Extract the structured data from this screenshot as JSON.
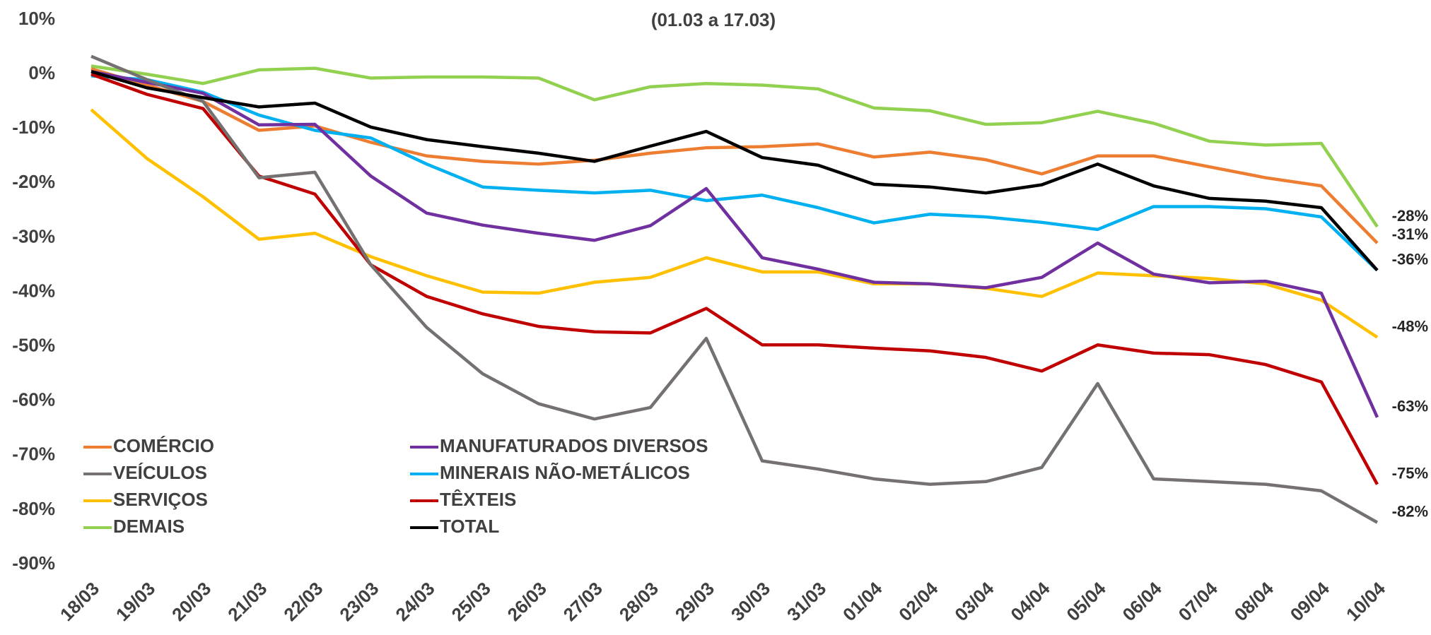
{
  "chart_data": {
    "type": "line",
    "subtitle": "(01.03 a 17.03)",
    "categories": [
      "18/03",
      "19/03",
      "20/03",
      "21/03",
      "22/03",
      "23/03",
      "24/03",
      "25/03",
      "26/03",
      "27/03",
      "28/03",
      "29/03",
      "30/03",
      "31/03",
      "01/04",
      "02/04",
      "03/04",
      "04/04",
      "05/04",
      "06/04",
      "07/04",
      "08/04",
      "09/04",
      "10/04"
    ],
    "ylim": [
      -90,
      10
    ],
    "yticks": [
      {
        "value": -90,
        "label": "-90%"
      },
      {
        "value": -80,
        "label": "-80%"
      },
      {
        "value": -70,
        "label": "-70%"
      },
      {
        "value": -60,
        "label": "-60%"
      },
      {
        "value": -50,
        "label": "-50%"
      },
      {
        "value": -40,
        "label": "-40%"
      },
      {
        "value": -30,
        "label": "-30%"
      },
      {
        "value": -20,
        "label": "-20%"
      },
      {
        "value": -10,
        "label": "-10%"
      },
      {
        "value": 0,
        "label": "0%"
      },
      {
        "value": 10,
        "label": "10%"
      }
    ],
    "grid": false,
    "legend": "lower-left",
    "series": [
      {
        "name": "COMÉRCIO",
        "color": "#ED7D31",
        "values": [
          1,
          -2,
          -5,
          -10.3,
          -9.5,
          -12.5,
          -15,
          -16,
          -16.5,
          -15.8,
          -14.5,
          -13.5,
          -13.3,
          -12.8,
          -15.2,
          -14.3,
          -15.7,
          -18.3,
          -15,
          -15,
          -17,
          -19,
          -20.5,
          -31
        ],
        "value_labels": [
          null,
          null,
          null,
          null,
          null,
          null,
          null,
          null,
          null,
          null,
          null,
          null,
          null,
          null,
          null,
          null,
          null,
          null,
          null,
          null,
          null,
          null,
          null,
          "-31%"
        ]
      },
      {
        "name": "VEÍCULOS",
        "color": "#767171",
        "values": [
          3.3,
          -1,
          -5,
          -19,
          -18,
          -35,
          -46.5,
          -55,
          -60.5,
          -63.3,
          -61.2,
          -48.5,
          -71,
          -72.5,
          -74.3,
          -75.3,
          -74.8,
          -72.2,
          -56.8,
          -74.3,
          -74.8,
          -75.3,
          -76.5,
          -82.3
        ],
        "value_labels": [
          null,
          null,
          null,
          null,
          null,
          null,
          null,
          null,
          null,
          null,
          null,
          null,
          null,
          null,
          null,
          null,
          null,
          null,
          null,
          null,
          null,
          null,
          null,
          "-82%"
        ]
      },
      {
        "name": "SERVIÇOS",
        "color": "#FFC000",
        "values": [
          -6.5,
          -15.5,
          -22.5,
          -30.3,
          -29.2,
          -33.5,
          -37,
          -40,
          -40.2,
          -38.2,
          -37.3,
          -33.7,
          -36.3,
          -36.3,
          -38.5,
          -38.5,
          -39.3,
          -40.8,
          -36.5,
          -37,
          -37.5,
          -38.5,
          -41.5,
          -48.3
        ],
        "value_labels": [
          null,
          null,
          null,
          null,
          null,
          null,
          null,
          null,
          null,
          null,
          null,
          null,
          null,
          null,
          null,
          null,
          null,
          null,
          null,
          null,
          null,
          null,
          null,
          "-48%"
        ]
      },
      {
        "name": "DEMAIS",
        "color": "#92D050",
        "values": [
          1.5,
          0,
          -1.7,
          0.8,
          1.1,
          -0.7,
          -0.5,
          -0.5,
          -0.7,
          -4.7,
          -2.3,
          -1.7,
          -2,
          -2.7,
          -6.2,
          -6.7,
          -9.2,
          -8.9,
          -6.8,
          -9,
          -12.3,
          -13,
          -12.7,
          -28
        ],
        "value_labels": [
          null,
          null,
          null,
          null,
          null,
          null,
          null,
          null,
          null,
          null,
          null,
          null,
          null,
          null,
          null,
          null,
          null,
          null,
          null,
          null,
          null,
          null,
          null,
          "-28%"
        ]
      },
      {
        "name": "MANUFATURADOS DIVERSOS",
        "color": "#7030A0",
        "values": [
          0.5,
          -1.5,
          -3.5,
          -9.3,
          -9.2,
          -18.7,
          -25.5,
          -27.7,
          -29.2,
          -30.5,
          -27.8,
          -21,
          -33.7,
          -35.8,
          -38.2,
          -38.5,
          -39.2,
          -37.3,
          -31,
          -36.7,
          -38.3,
          -38,
          -40.2,
          -63
        ],
        "value_labels": [
          null,
          null,
          null,
          null,
          null,
          null,
          null,
          null,
          null,
          null,
          null,
          null,
          null,
          null,
          null,
          null,
          null,
          null,
          null,
          null,
          null,
          null,
          null,
          "-63%"
        ]
      },
      {
        "name": "MINERAIS NÃO-METÁLICOS",
        "color": "#00B0F0",
        "values": [
          -0.3,
          -1,
          -3.3,
          -7.5,
          -10.3,
          -11.7,
          -16.5,
          -20.7,
          -21.3,
          -21.8,
          -21.3,
          -23.2,
          -22.2,
          -24.5,
          -27.3,
          -25.7,
          -26.2,
          -27.2,
          -28.5,
          -24.3,
          -24.3,
          -24.7,
          -26.2,
          -36
        ]
      },
      {
        "name": "TÊXTEIS",
        "color": "#C00000",
        "values": [
          0,
          -3.7,
          -6.3,
          -18.7,
          -22,
          -35,
          -40.8,
          -44,
          -46.3,
          -47.3,
          -47.5,
          -43,
          -49.7,
          -49.7,
          -50.3,
          -50.8,
          -52,
          -54.5,
          -49.7,
          -51.2,
          -51.5,
          -53.3,
          -56.5,
          -75.3
        ],
        "value_labels": [
          null,
          null,
          null,
          null,
          null,
          null,
          null,
          null,
          null,
          null,
          null,
          null,
          null,
          null,
          null,
          null,
          null,
          null,
          null,
          null,
          null,
          null,
          null,
          "-75%"
        ]
      },
      {
        "name": "TOTAL",
        "color": "#000000",
        "values": [
          0.5,
          -2.5,
          -4.3,
          -6,
          -5.3,
          -9.7,
          -12,
          -13.3,
          -14.5,
          -16,
          -13.2,
          -10.5,
          -15.3,
          -16.7,
          -20.2,
          -20.7,
          -21.8,
          -20.3,
          -16.5,
          -20.5,
          -22.8,
          -23.3,
          -24.5,
          -36
        ],
        "value_labels": [
          null,
          null,
          null,
          null,
          null,
          null,
          null,
          null,
          null,
          null,
          null,
          null,
          null,
          null,
          null,
          null,
          null,
          null,
          null,
          null,
          null,
          null,
          null,
          "-36%"
        ]
      }
    ]
  }
}
